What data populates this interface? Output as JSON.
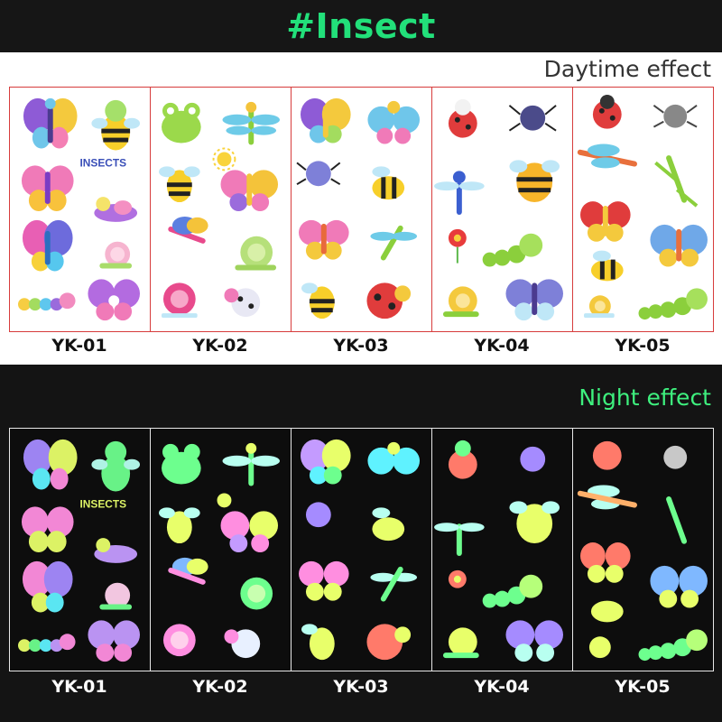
{
  "title": "#Insect",
  "daytime_label": "Daytime effect",
  "night_label": "Night effect",
  "cards": [
    {
      "code": "YK-01",
      "sticker_text": "INSECTS",
      "stickers": [
        "butterfly",
        "bee",
        "butterfly",
        "caterpillar",
        "snail",
        "butterfly",
        "caterpillar",
        "butterfly"
      ]
    },
    {
      "code": "YK-02",
      "stickers": [
        "frog",
        "dragonfly",
        "sun",
        "bee",
        "butterfly",
        "dragonfly",
        "snail",
        "snail",
        "ladybug"
      ]
    },
    {
      "code": "YK-03",
      "stickers": [
        "butterfly",
        "butterfly",
        "spider",
        "bee",
        "butterfly",
        "dragonfly",
        "bee",
        "ladybug"
      ]
    },
    {
      "code": "YK-04",
      "stickers": [
        "ladybug",
        "spider",
        "dragonfly",
        "bee",
        "flower",
        "caterpillar",
        "snail",
        "butterfly"
      ]
    },
    {
      "code": "YK-05",
      "stickers": [
        "ladybug",
        "spider",
        "dragonfly",
        "mantis",
        "butterfly",
        "butterfly",
        "bee",
        "snail",
        "caterpillar"
      ]
    }
  ],
  "colors": {
    "banner_bg": "#161616",
    "title_green": "#22e07a",
    "day_border": "#d73c3c",
    "night_glow": "#6dff8e"
  }
}
